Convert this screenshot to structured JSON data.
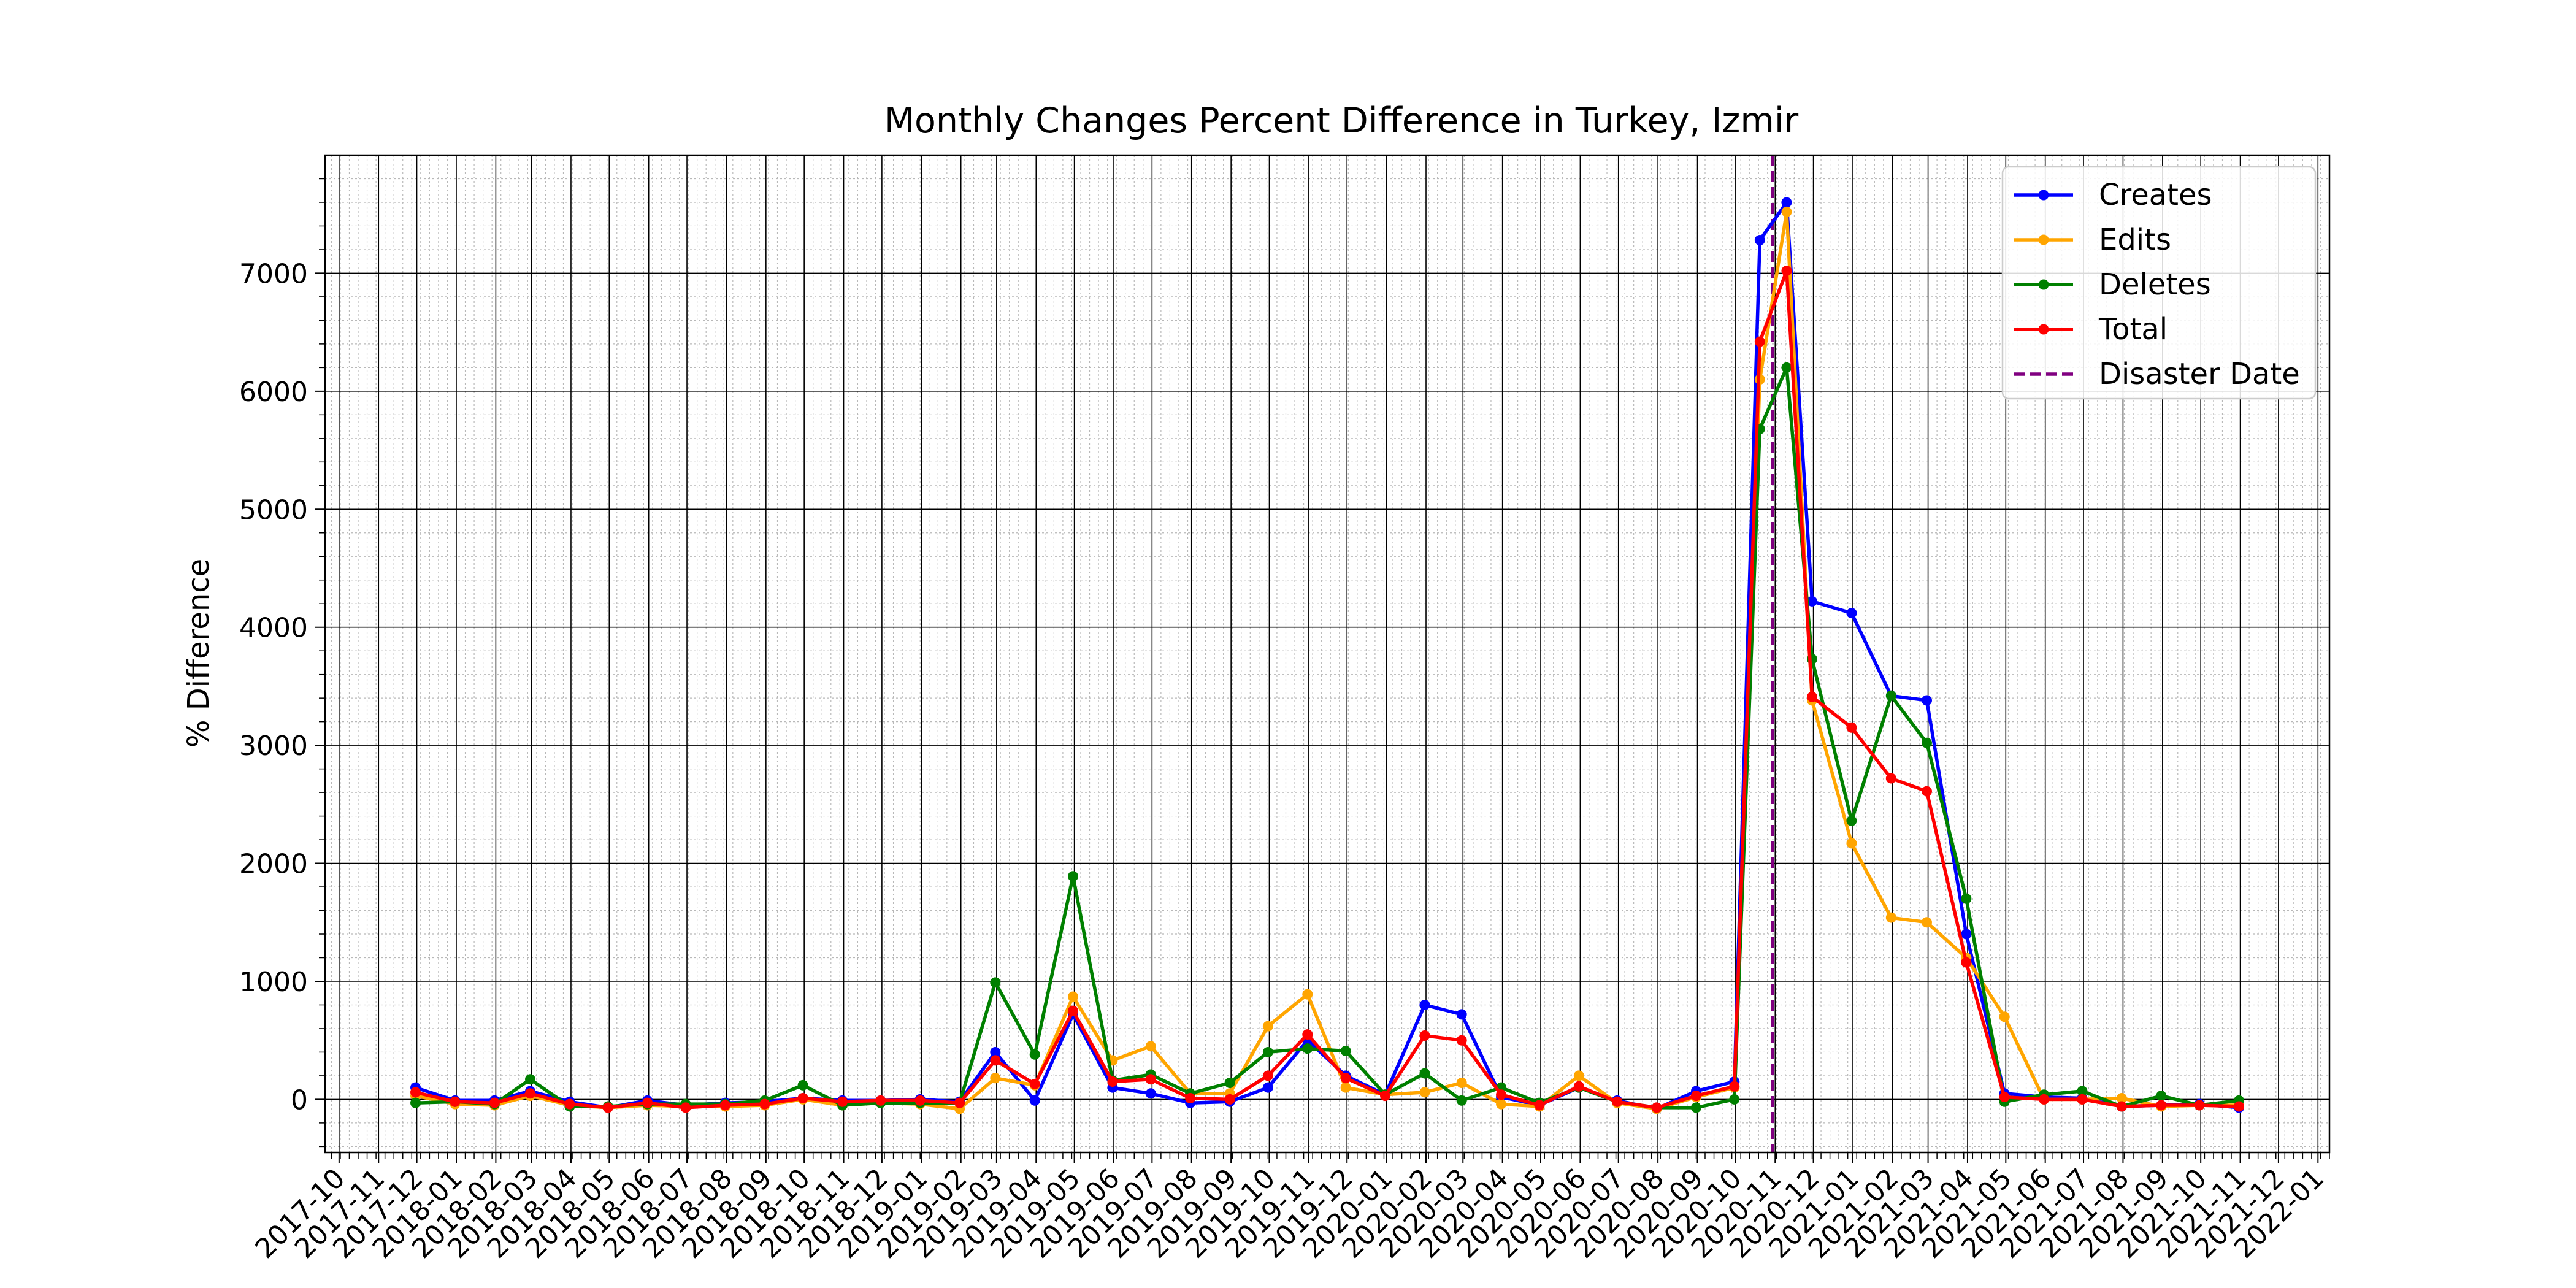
{
  "chart_data": {
    "type": "line",
    "title": "Monthly Changes Percent Difference in Turkey, Izmir",
    "xlabel": "",
    "ylabel": "% Difference",
    "x_tick_labels": [
      "2017-10",
      "2017-11",
      "2017-12",
      "2018-01",
      "2018-02",
      "2018-03",
      "2018-04",
      "2018-05",
      "2018-06",
      "2018-07",
      "2018-08",
      "2018-09",
      "2018-10",
      "2018-11",
      "2018-12",
      "2019-01",
      "2019-02",
      "2019-03",
      "2019-04",
      "2019-05",
      "2019-06",
      "2019-07",
      "2019-08",
      "2019-09",
      "2019-10",
      "2019-11",
      "2019-12",
      "2020-01",
      "2020-02",
      "2020-03",
      "2020-04",
      "2020-05",
      "2020-06",
      "2020-07",
      "2020-08",
      "2020-09",
      "2020-10",
      "2020-11",
      "2020-12",
      "2021-01",
      "2021-02",
      "2021-03",
      "2021-04",
      "2021-05",
      "2021-06",
      "2021-07",
      "2021-08",
      "2021-09",
      "2021-10",
      "2021-11",
      "2021-12",
      "2022-01"
    ],
    "y_ticks": [
      0,
      1000,
      2000,
      3000,
      4000,
      5000,
      6000,
      7000
    ],
    "y_tick_labels": [
      "0",
      "1000",
      "2000",
      "3000",
      "4000",
      "5000",
      "6000",
      "7000"
    ],
    "ylim": [
      -450,
      8000
    ],
    "x_range": [
      "2017-09-20",
      "2022-01-10"
    ],
    "grid": true,
    "legend_position": "top-right",
    "disaster": {
      "label": "Disaster Date",
      "date": "2020-10-30",
      "color": "#800080"
    },
    "x": [
      "2017-11-30",
      "2017-12-31",
      "2018-01-31",
      "2018-02-28",
      "2018-03-31",
      "2018-04-30",
      "2018-05-31",
      "2018-06-30",
      "2018-07-31",
      "2018-08-31",
      "2018-09-30",
      "2018-10-31",
      "2018-11-30",
      "2018-12-31",
      "2019-01-31",
      "2019-02-28",
      "2019-03-31",
      "2019-04-30",
      "2019-05-31",
      "2019-06-30",
      "2019-07-31",
      "2019-08-31",
      "2019-09-30",
      "2019-10-31",
      "2019-11-30",
      "2019-12-31",
      "2020-01-31",
      "2020-02-29",
      "2020-03-31",
      "2020-04-30",
      "2020-05-31",
      "2020-06-30",
      "2020-07-31",
      "2020-08-31",
      "2020-09-30",
      "2020-10-20",
      "2020-11-10",
      "2020-11-30",
      "2020-12-31",
      "2021-01-31",
      "2021-02-28",
      "2021-03-31",
      "2021-04-30",
      "2021-05-31",
      "2021-06-30",
      "2021-07-31",
      "2021-08-31",
      "2021-09-30",
      "2021-10-31"
    ],
    "series": [
      {
        "name": "Creates",
        "color": "#0000ff",
        "values": [
          100,
          -10,
          -10,
          70,
          -20,
          -70,
          -10,
          -50,
          -30,
          -20,
          10,
          -10,
          -10,
          0,
          -20,
          400,
          -10,
          720,
          100,
          50,
          -30,
          -20,
          100,
          500,
          200,
          40,
          800,
          720,
          20,
          -50,
          100,
          -10,
          -80,
          70,
          150,
          7280,
          7600,
          4220,
          4120,
          3420,
          3380,
          1400,
          50,
          20,
          10,
          -60,
          -50,
          -40,
          -70
        ]
      },
      {
        "name": "Edits",
        "color": "#ffa500",
        "values": [
          30,
          -40,
          -50,
          30,
          -50,
          -70,
          -50,
          -60,
          -60,
          -50,
          0,
          -50,
          -30,
          -40,
          -80,
          180,
          120,
          870,
          330,
          450,
          50,
          50,
          620,
          890,
          100,
          40,
          60,
          140,
          -40,
          -60,
          200,
          -30,
          -80,
          20,
          100,
          6100,
          7520,
          3380,
          2170,
          1540,
          1500,
          1200,
          700,
          0,
          0,
          10,
          -60,
          -50,
          -50
        ]
      },
      {
        "name": "Deletes",
        "color": "#008000",
        "values": [
          -30,
          -20,
          -40,
          170,
          -60,
          -60,
          -40,
          -40,
          -40,
          -10,
          120,
          -50,
          -30,
          -30,
          -30,
          990,
          380,
          1890,
          160,
          210,
          50,
          140,
          400,
          430,
          410,
          40,
          220,
          -10,
          100,
          -30,
          100,
          -20,
          -70,
          -70,
          0,
          5680,
          6200,
          3730,
          2360,
          3420,
          3020,
          1700,
          -20,
          40,
          70,
          -60,
          30,
          -50,
          -10
        ]
      },
      {
        "name": "Total",
        "color": "#ff0000",
        "values": [
          60,
          -20,
          -30,
          50,
          -40,
          -70,
          -30,
          -70,
          -50,
          -40,
          10,
          -20,
          -10,
          -10,
          -30,
          330,
          130,
          750,
          150,
          170,
          10,
          0,
          200,
          550,
          180,
          30,
          540,
          500,
          40,
          -50,
          110,
          -20,
          -70,
          30,
          110,
          6420,
          7020,
          3410,
          3150,
          2720,
          2610,
          1160,
          20,
          0,
          0,
          -60,
          -50,
          -50,
          -60
        ]
      }
    ]
  }
}
